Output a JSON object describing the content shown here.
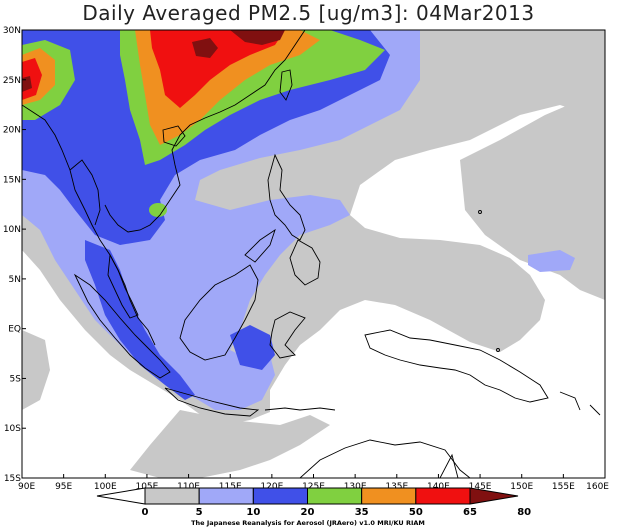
{
  "title": "Daily Averaged PM2.5 [ug/m3]: 04Mar2013",
  "map": {
    "lon_range": [
      90,
      160
    ],
    "lat_range": [
      -15,
      30
    ],
    "lat_ticks": [
      "30N",
      "25N",
      "20N",
      "15N",
      "10N",
      "5N",
      "EQ",
      "5S",
      "10S",
      "15S"
    ],
    "lon_ticks": [
      "90E",
      "95E",
      "100E",
      "105E",
      "110E",
      "115E",
      "120E",
      "125E",
      "130E",
      "135E",
      "140E",
      "145E",
      "150E",
      "155E",
      "160E"
    ]
  },
  "colorbar": {
    "levels": [
      "0",
      "5",
      "10",
      "20",
      "35",
      "50",
      "65",
      "80"
    ],
    "colors": [
      "#ffffff",
      "#c8c8c8",
      "#a0a8f8",
      "#4050e8",
      "#80d040",
      "#f09020",
      "#f01010",
      "#801010"
    ]
  },
  "credit": "The Japanese Reanalysis for Aerosol (JRAero) v1.0 MRI/KU RIAM"
}
